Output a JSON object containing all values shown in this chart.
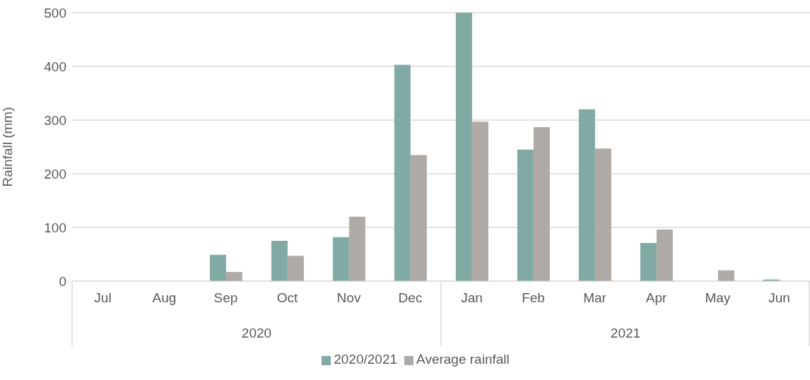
{
  "chart_data": {
    "type": "bar",
    "ylabel": "Rainfall (mm)",
    "categories": [
      "Jul",
      "Aug",
      "Sep",
      "Oct",
      "Nov",
      "Dec",
      "Jan",
      "Feb",
      "Mar",
      "Apr",
      "May",
      "Jun"
    ],
    "series": [
      {
        "name": "2020/2021",
        "color": "#82aaa5",
        "values": [
          0,
          0,
          49,
          75,
          82,
          403,
          500,
          245,
          320,
          71,
          0,
          3
        ]
      },
      {
        "name": "Average rainfall",
        "color": "#afaaa5",
        "values": [
          0,
          0,
          17,
          47,
          120,
          235,
          297,
          287,
          247,
          96,
          20,
          0
        ]
      }
    ],
    "ylim": [
      0,
      500
    ],
    "yticks": [
      0,
      100,
      200,
      300,
      400,
      500
    ],
    "grid": "y",
    "legend": "bottom",
    "annotations": [
      "2020",
      "2021"
    ]
  }
}
